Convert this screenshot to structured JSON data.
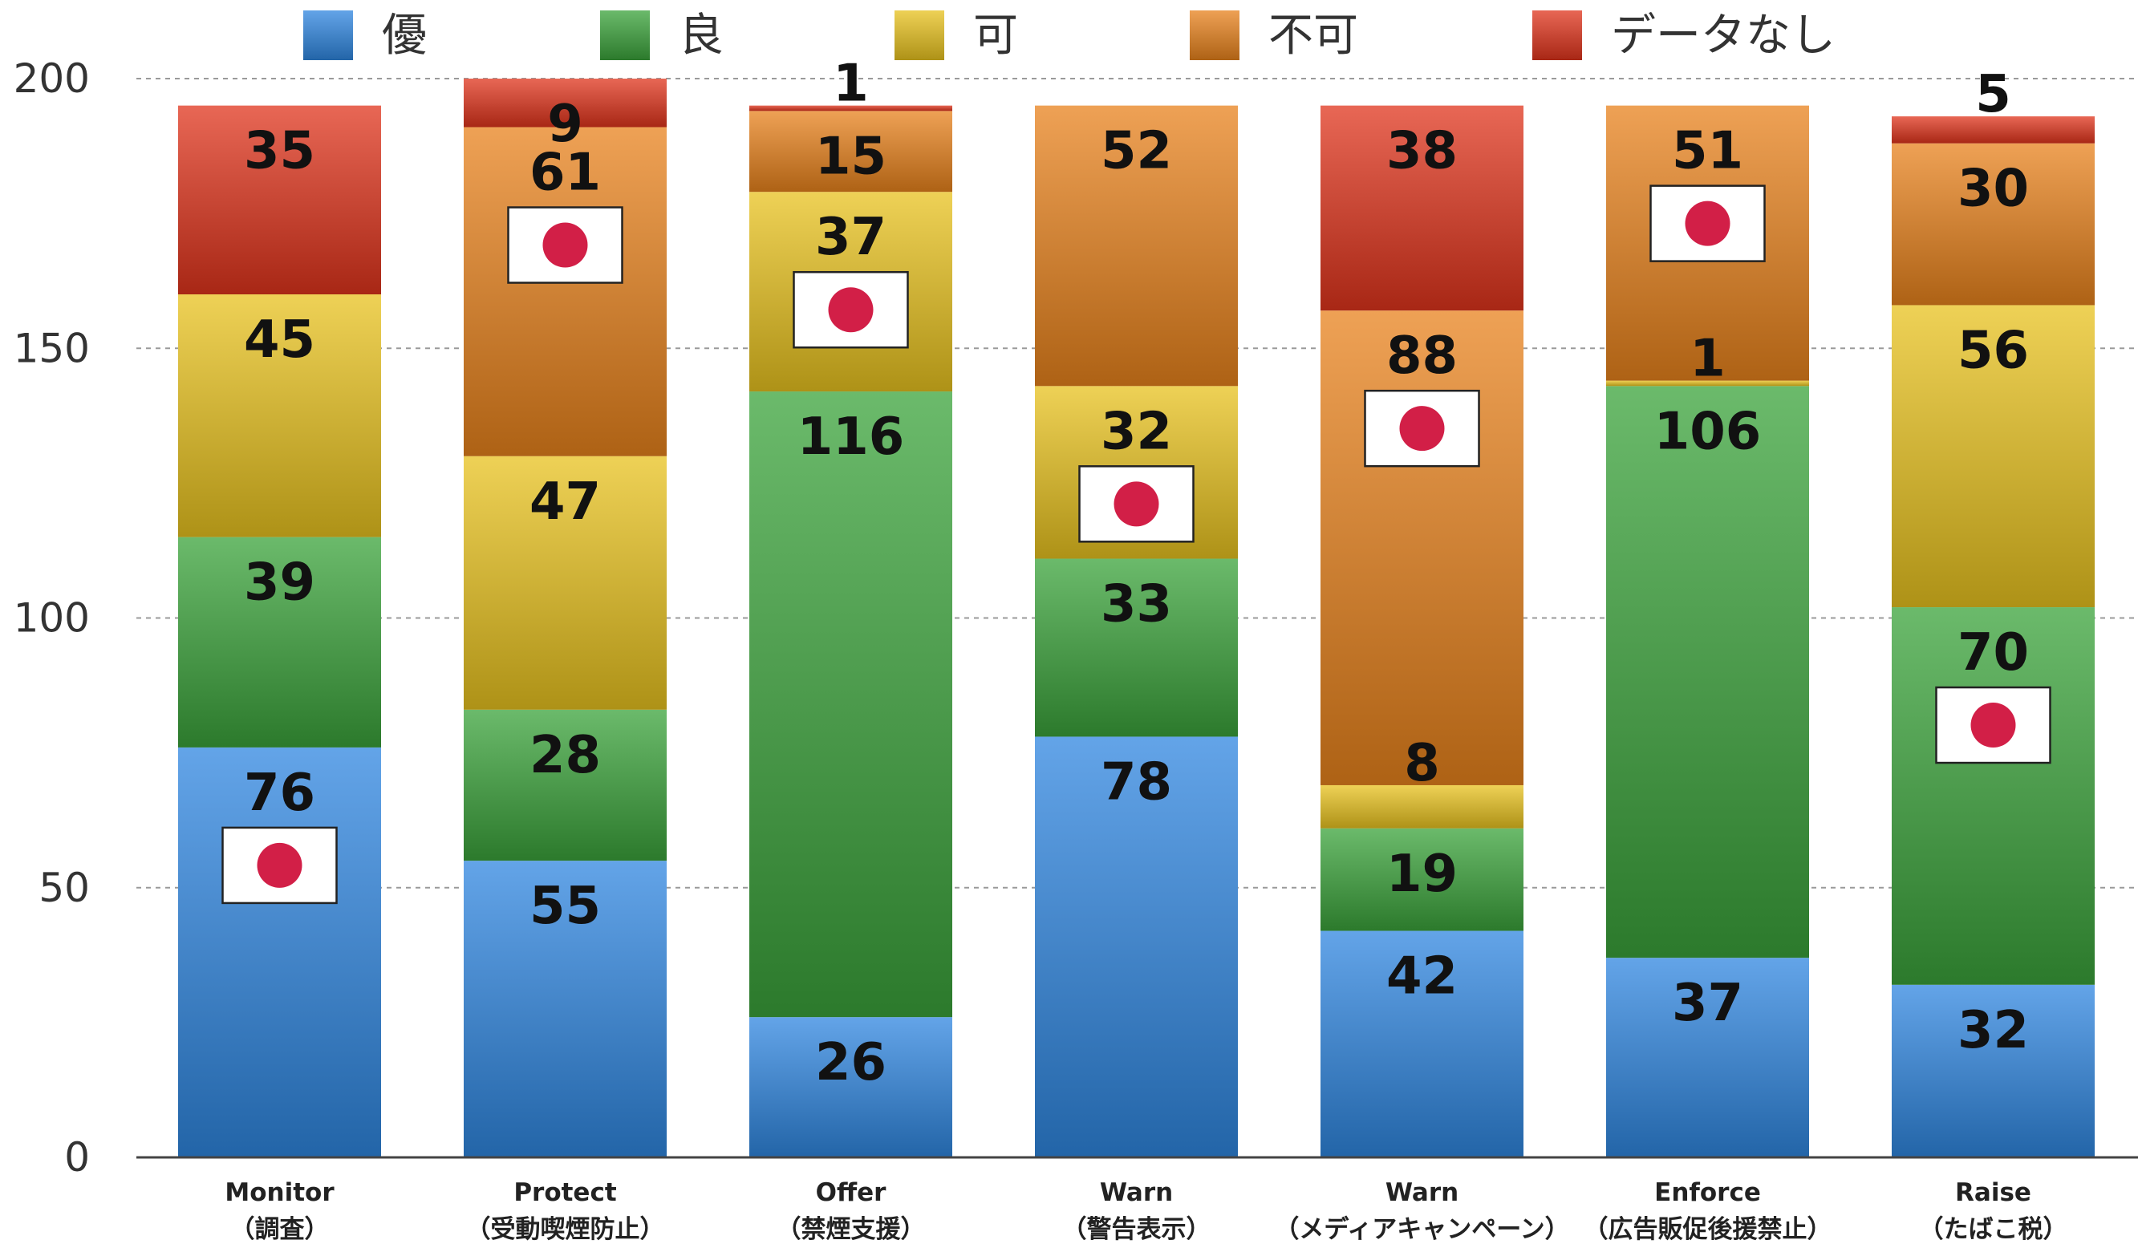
{
  "chart_data": {
    "type": "bar",
    "stacked": true,
    "categories": [
      [
        "Monitor",
        "（調査）"
      ],
      [
        "Protect",
        "（受動喫煙防止）"
      ],
      [
        "Offer",
        "（禁煙支援）"
      ],
      [
        "Warn",
        "（警告表示）"
      ],
      [
        "Warn",
        "（メディアキャンペーン）"
      ],
      [
        "Enforce",
        "（広告販促後援禁止）"
      ],
      [
        "Raise",
        "（たばこ税）"
      ]
    ],
    "series": [
      {
        "name": "優",
        "color": "#2f86e0",
        "values": [
          76,
          55,
          26,
          78,
          42,
          37,
          32
        ]
      },
      {
        "name": "良",
        "color": "#3aa33a",
        "values": [
          39,
          28,
          116,
          33,
          19,
          106,
          70
        ]
      },
      {
        "name": "可",
        "color": "#e8c21e",
        "values": [
          45,
          47,
          37,
          32,
          8,
          1,
          56
        ]
      },
      {
        "name": "不可",
        "color": "#e8821c",
        "values": [
          0,
          61,
          15,
          52,
          88,
          51,
          30
        ]
      },
      {
        "name": "データなし",
        "color": "#e0341c",
        "values": [
          35,
          9,
          1,
          0,
          38,
          0,
          5
        ]
      }
    ],
    "data_labels": [
      [
        "76",
        "39",
        "45",
        "",
        "35"
      ],
      [
        "55",
        "28",
        "47",
        "61",
        "9"
      ],
      [
        "26",
        "116",
        "37",
        "15",
        "1"
      ],
      [
        "78",
        "33",
        "32",
        "52",
        ""
      ],
      [
        "42",
        "19",
        "8",
        "88",
        "38"
      ],
      [
        "37",
        "106",
        "1",
        "51",
        ""
      ],
      [
        "32",
        "70",
        "56",
        "30",
        "5"
      ]
    ],
    "japan_level": [
      "優",
      "不可",
      "可",
      "可",
      "不可",
      "不可",
      "良"
    ],
    "yticks": [
      "0",
      "50",
      "100",
      "150",
      "200"
    ],
    "ylim": [
      0,
      200
    ],
    "grid": true,
    "legend_position": "top"
  }
}
